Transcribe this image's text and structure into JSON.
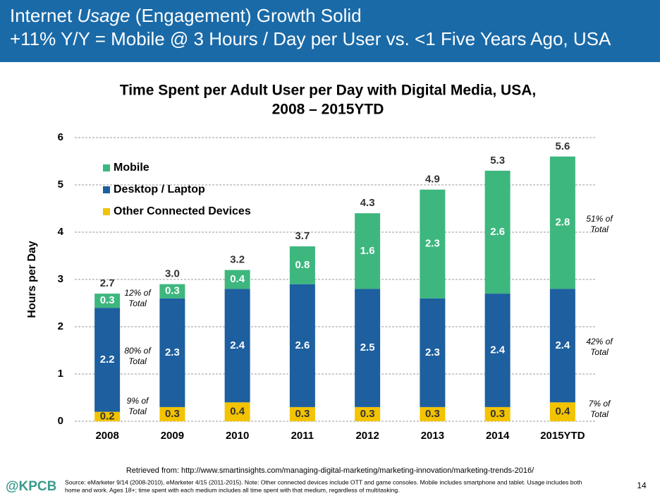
{
  "header": {
    "line1": [
      "Internet ",
      "Usage",
      " (Engagement) Growth Solid"
    ],
    "line2": "+11% Y/Y = Mobile @ 3 Hours / Day per User vs. <1  Five Years Ago, USA"
  },
  "chart_data": {
    "type": "stacked_bar",
    "title": [
      "Time Spent per Adult User per Day with Digital Media, USA,",
      "2008 – 2015YTD"
    ],
    "y_label": "Hours per Day",
    "categories": [
      "2008",
      "2009",
      "2010",
      "2011",
      "2012",
      "2013",
      "2014",
      "2015YTD"
    ],
    "series": [
      {
        "name": "Mobile",
        "color": "#3db77e",
        "values": [
          0.3,
          0.3,
          0.4,
          0.8,
          1.6,
          2.3,
          2.6,
          2.8
        ]
      },
      {
        "name": "Desktop / Laptop",
        "color": "#1d5f9f",
        "values": [
          2.2,
          2.3,
          2.4,
          2.6,
          2.5,
          2.3,
          2.4,
          2.4
        ]
      },
      {
        "name": "Other Connected Devices",
        "color": "#f3c300",
        "values": [
          0.2,
          0.3,
          0.4,
          0.3,
          0.3,
          0.3,
          0.3,
          0.4
        ]
      }
    ],
    "totals": {
      "values": [
        2.7,
        3,
        3.2,
        3.7,
        4.3,
        4.9,
        5.3,
        5.6
      ],
      "value_labels": [
        "2.7",
        "3.0",
        "3.2",
        "3.7",
        "4.3",
        "4.9",
        "5.3",
        "5.6"
      ]
    },
    "annotations": [
      [
        "12% of",
        "Total"
      ],
      [
        "80% of",
        "Total"
      ],
      [
        "9% of",
        "Total"
      ],
      [
        "51% of",
        "Total"
      ],
      [
        "42% of",
        "Total"
      ],
      [
        "7% of",
        "Total"
      ]
    ],
    "ylim": [
      0,
      6
    ],
    "yticks": [
      0,
      1,
      2,
      3,
      4,
      5,
      6
    ],
    "grid": true
  },
  "footer": {
    "retrieved": "Retrieved from: http://www.smartinsights.com/managing-digital-marketing/marketing-innovation/marketing-trends-2016/",
    "logo": "@KPCB",
    "source": [
      "Source: eMarketer 9/14 (2008-2010), eMarketer 4/15 (2011-2015). Note: Other connected devices include OTT and game consoles. Mobile includes smartphone and tablet. Usage includes both",
      "home and work. Ages 18+; time spent with each medium includes all time spent with that medium, regardless of multitasking."
    ],
    "page": "14"
  }
}
